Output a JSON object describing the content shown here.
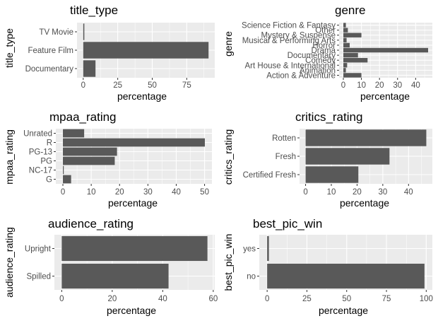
{
  "chart_data": [
    {
      "type": "bar",
      "orientation": "horizontal",
      "title": "title_type",
      "xlabel": "percentage",
      "ylabel": "title_type",
      "categories": [
        "Documentary",
        "Feature Film",
        "TV Movie"
      ],
      "values": [
        8.9,
        90.8,
        0.8
      ],
      "xlim": [
        -4.5,
        95.3
      ],
      "xticks": [
        0,
        25,
        50,
        75
      ],
      "grid": true
    },
    {
      "type": "bar",
      "orientation": "horizontal",
      "title": "genre",
      "xlabel": "percentage",
      "ylabel": "genre",
      "categories": [
        "Action & Adventure",
        "Animation",
        "Art House & International",
        "Comedy",
        "Documentary",
        "Drama",
        "Horror",
        "Musical & Performing Arts",
        "Mystery & Suspense",
        "Other",
        "Science Fiction & Fantasy"
      ],
      "values": [
        10.0,
        1.4,
        2.1,
        13.4,
        8.1,
        46.9,
        3.5,
        1.8,
        10.0,
        2.5,
        1.4
      ],
      "xlim": [
        -2.35,
        49.25
      ],
      "xticks": [
        0,
        10,
        20,
        30,
        40
      ],
      "grid": true
    },
    {
      "type": "bar",
      "orientation": "horizontal",
      "title": "mpaa_rating",
      "xlabel": "percentage",
      "ylabel": "mpaa_rating",
      "categories": [
        "G",
        "NC-17",
        "PG",
        "PG-13",
        "R",
        "Unrated"
      ],
      "values": [
        2.9,
        0.3,
        18.3,
        19.1,
        50.1,
        7.5
      ],
      "xlim": [
        -2.5,
        52.6
      ],
      "xticks": [
        0,
        10,
        20,
        30,
        40,
        50
      ],
      "grid": true
    },
    {
      "type": "bar",
      "orientation": "horizontal",
      "title": "critics_rating",
      "xlabel": "percentage",
      "ylabel": "critics_rating",
      "categories": [
        "Certified Fresh",
        "Fresh",
        "Rotten"
      ],
      "values": [
        20.5,
        32.6,
        46.9
      ],
      "xlim": [
        -2.35,
        49.25
      ],
      "xticks": [
        0,
        10,
        20,
        30,
        40
      ],
      "grid": true
    },
    {
      "type": "bar",
      "orientation": "horizontal",
      "title": "audience_rating",
      "xlabel": "percentage",
      "ylabel": "audience_rating",
      "categories": [
        "Spilled",
        "Upright"
      ],
      "values": [
        42.3,
        57.7
      ],
      "xlim": [
        -2.9,
        60.6
      ],
      "xticks": [
        0,
        20,
        40,
        60
      ],
      "grid": true
    },
    {
      "type": "bar",
      "orientation": "horizontal",
      "title": "best_pic_win",
      "xlabel": "percentage",
      "ylabel": "best_pic_win",
      "categories": [
        "no",
        "yes"
      ],
      "values": [
        98.9,
        1.1
      ],
      "xlim": [
        -4.95,
        103.85
      ],
      "xticks": [
        0,
        25,
        50,
        75,
        100
      ],
      "grid": true
    }
  ]
}
